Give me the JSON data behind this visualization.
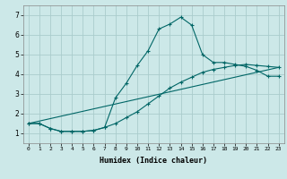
{
  "xlabel": "Humidex (Indice chaleur)",
  "bg_color": "#cce8e8",
  "grid_color": "#aacccc",
  "line_color": "#006666",
  "xlim": [
    -0.5,
    23.5
  ],
  "ylim": [
    0.5,
    7.5
  ],
  "xticks": [
    0,
    1,
    2,
    3,
    4,
    5,
    6,
    7,
    8,
    9,
    10,
    11,
    12,
    13,
    14,
    15,
    16,
    17,
    18,
    19,
    20,
    21,
    22,
    23
  ],
  "yticks": [
    1,
    2,
    3,
    4,
    5,
    6,
    7
  ],
  "line1_x": [
    0,
    1,
    2,
    3,
    4,
    5,
    6,
    7,
    8,
    9,
    10,
    11,
    12,
    13,
    14,
    15,
    16,
    17,
    18,
    19,
    20,
    21,
    22,
    23
  ],
  "line1_y": [
    1.5,
    1.5,
    1.25,
    1.1,
    1.1,
    1.1,
    1.15,
    1.3,
    2.8,
    3.55,
    4.45,
    5.2,
    6.3,
    6.55,
    6.9,
    6.5,
    5.0,
    4.6,
    4.6,
    4.5,
    4.4,
    4.2,
    3.9,
    3.9
  ],
  "line2_x": [
    0,
    1,
    2,
    3,
    4,
    5,
    6,
    7,
    8,
    9,
    10,
    11,
    12,
    13,
    14,
    15,
    16,
    17,
    18,
    19,
    20,
    21,
    22,
    23
  ],
  "line2_y": [
    1.5,
    1.5,
    1.25,
    1.1,
    1.1,
    1.1,
    1.15,
    1.3,
    1.5,
    1.8,
    2.1,
    2.5,
    2.9,
    3.3,
    3.6,
    3.85,
    4.1,
    4.25,
    4.35,
    4.45,
    4.5,
    4.45,
    4.4,
    4.35
  ],
  "line3_x": [
    0,
    23
  ],
  "line3_y": [
    1.5,
    4.35
  ]
}
